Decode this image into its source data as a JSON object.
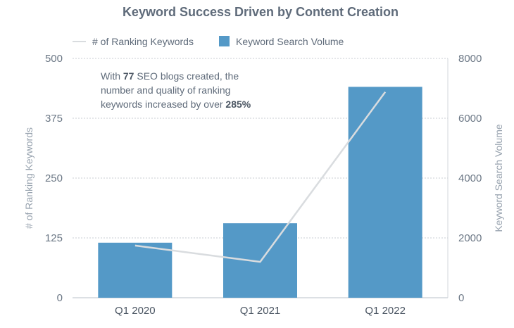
{
  "chart_data": {
    "type": "bar",
    "title": "Keyword Success Driven by Content Creation",
    "categories": [
      "Q1 2020",
      "Q1 2021",
      "Q1 2022"
    ],
    "series": [
      {
        "name": "Keyword Search Volume",
        "type": "bar",
        "axis": "right",
        "values": [
          1840,
          2490,
          7050
        ],
        "color": "#5499c7"
      },
      {
        "name": "# of Ranking Keywords",
        "type": "line",
        "axis": "left",
        "values": [
          109,
          75,
          430
        ],
        "color": "#d9dcdf"
      }
    ],
    "y_left": {
      "label": "# of Ranking Keywords",
      "lim": [
        0,
        500
      ],
      "ticks": [
        0,
        125,
        250,
        375,
        500
      ]
    },
    "y_right": {
      "label": "Keyword Search Volume",
      "lim": [
        0,
        8000
      ],
      "ticks": [
        0,
        2000,
        4000,
        6000,
        8000
      ]
    },
    "grid": true,
    "legend": "top",
    "annotation": {
      "line1_a": "With ",
      "line1_b": "77",
      "line1_c": " SEO blogs created, the",
      "line2": "number and quality of ranking",
      "line3_a": "keywords increased by over ",
      "line3_b": "285%"
    }
  }
}
